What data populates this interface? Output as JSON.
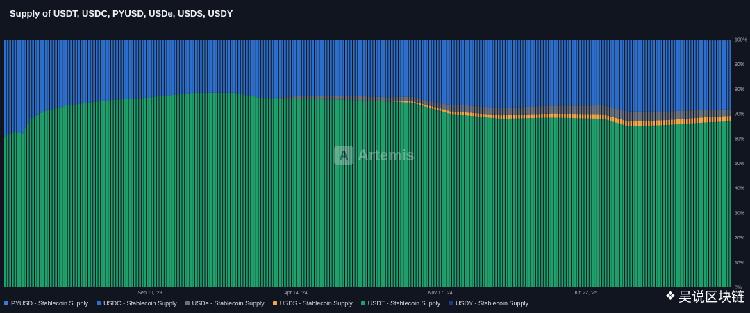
{
  "chart_data": {
    "type": "bar",
    "stacked": "percent",
    "title": "Supply of USDT, USDC, PYUSD, USDe, USDS, USDY",
    "x_ticks": [
      "Sep 10, '23",
      "Apr 14, '24",
      "Nov 17, '24",
      "Jun 22, '25"
    ],
    "y_ticks": [
      "0%",
      "10%",
      "20%",
      "30%",
      "40%",
      "50%",
      "60%",
      "70%",
      "80%",
      "90%",
      "100%"
    ],
    "ylim": [
      0,
      100
    ],
    "legend_position": "bottom-left",
    "watermark": "Artemis",
    "usdt_share_keypoints": [
      [
        0,
        61
      ],
      [
        4,
        63
      ],
      [
        7,
        62
      ],
      [
        10,
        68
      ],
      [
        15,
        71
      ],
      [
        25,
        73.5
      ],
      [
        40,
        75.5
      ],
      [
        55,
        76.5
      ],
      [
        65,
        77.5
      ],
      [
        75,
        78.5
      ],
      [
        90,
        78.5
      ],
      [
        100,
        76.5
      ],
      [
        120,
        76
      ],
      [
        140,
        75.5
      ],
      [
        160,
        74.5
      ],
      [
        175,
        70
      ],
      [
        195,
        68
      ],
      [
        215,
        68.5
      ],
      [
        235,
        68
      ],
      [
        245,
        65
      ],
      [
        260,
        65.5
      ],
      [
        275,
        66.5
      ],
      [
        285,
        67
      ]
    ],
    "usds_share_keypoints": [
      [
        0,
        0
      ],
      [
        150,
        0
      ],
      [
        160,
        0.6
      ],
      [
        180,
        1.2
      ],
      [
        200,
        1.5
      ],
      [
        230,
        1.8
      ],
      [
        285,
        2.2
      ]
    ],
    "usde_share_keypoints": [
      [
        0,
        0
      ],
      [
        105,
        0
      ],
      [
        115,
        1
      ],
      [
        130,
        1.5
      ],
      [
        165,
        1.8
      ],
      [
        180,
        2.8
      ],
      [
        200,
        3
      ],
      [
        230,
        3.4
      ],
      [
        245,
        4
      ],
      [
        260,
        3.5
      ],
      [
        285,
        2.6
      ]
    ],
    "pyusd_share_keypoints": [
      [
        0,
        0
      ],
      [
        250,
        0
      ],
      [
        265,
        0.2
      ],
      [
        285,
        0.4
      ]
    ],
    "usdy_share_keypoints": [
      [
        0,
        0
      ],
      [
        285,
        0
      ]
    ],
    "series": [
      {
        "name": "PYUSD - Stablecoin Supply",
        "color": "#3f78d0"
      },
      {
        "name": "USDC - Stablecoin Supply",
        "color": "#2f6fcc"
      },
      {
        "name": "USDe - Stablecoin Supply",
        "color": "#6a7180"
      },
      {
        "name": "USDS - Stablecoin Supply",
        "color": "#f2a84a"
      },
      {
        "name": "USDT - Stablecoin Supply",
        "color": "#22a06b"
      },
      {
        "name": "USDY - Stablecoin Supply",
        "color": "#1c3a7a"
      }
    ]
  },
  "credit": {
    "text": "吴说区块链",
    "icon": "diamond-logo-icon"
  }
}
